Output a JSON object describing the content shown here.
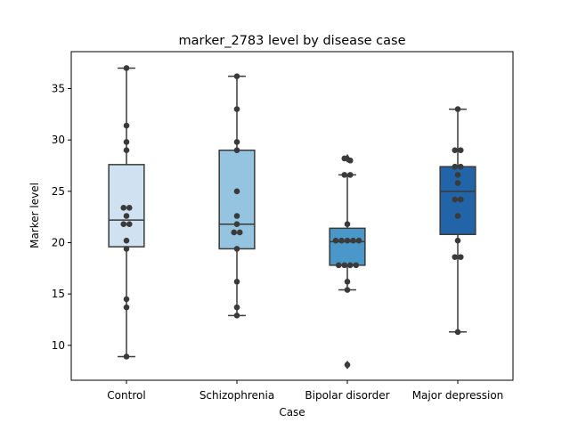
{
  "chart_data": {
    "type": "box",
    "title": "marker_2783 level by disease case",
    "xlabel": "Case",
    "ylabel": "Marker level",
    "ylim": [
      6.6,
      38.6
    ],
    "yticks": [
      10,
      15,
      20,
      25,
      30,
      35
    ],
    "grid": false,
    "legend": "none",
    "categories": [
      "Control",
      "Schizophrenia",
      "Bipolar disorder",
      "Major depression"
    ],
    "boxes": [
      {
        "category": "Control",
        "color": "#d0e1f2",
        "min": 8.9,
        "q1": 19.6,
        "median": 22.2,
        "q3": 27.6,
        "max": 37.0,
        "outliers": []
      },
      {
        "category": "Schizophrenia",
        "color": "#94c4df",
        "min": 12.9,
        "q1": 19.4,
        "median": 21.8,
        "q3": 29.0,
        "max": 36.2,
        "outliers": []
      },
      {
        "category": "Bipolar disorder",
        "color": "#4a98c9",
        "min": 15.4,
        "q1": 17.8,
        "median": 20.1,
        "q3": 21.4,
        "max": 26.6,
        "outliers": [
          28.2,
          8.1
        ]
      },
      {
        "category": "Major depression",
        "color": "#2264a8",
        "min": 11.3,
        "q1": 20.8,
        "median": 25.0,
        "q3": 27.4,
        "max": 33.0,
        "outliers": []
      }
    ],
    "points": [
      {
        "category": "Control",
        "values": [
          37.0,
          31.4,
          29.8,
          29.0,
          23.4,
          23.4,
          22.6,
          21.8,
          21.8,
          20.2,
          19.4,
          14.5,
          13.7,
          8.9
        ]
      },
      {
        "category": "Schizophrenia",
        "values": [
          36.2,
          33.0,
          29.8,
          29.0,
          25.0,
          22.6,
          21.8,
          21.0,
          21.0,
          19.4,
          16.2,
          13.7,
          12.9
        ]
      },
      {
        "category": "Bipolar disorder",
        "values": [
          28.2,
          28.0,
          26.6,
          26.6,
          21.8,
          20.2,
          20.2,
          20.2,
          20.2,
          20.2,
          17.8,
          17.8,
          17.8,
          17.8,
          16.2,
          15.4,
          8.1
        ]
      },
      {
        "category": "Major depression",
        "values": [
          33.0,
          29.0,
          29.0,
          27.4,
          27.4,
          26.6,
          25.8,
          24.2,
          24.2,
          22.6,
          20.2,
          18.6,
          18.6,
          11.3
        ]
      }
    ]
  }
}
